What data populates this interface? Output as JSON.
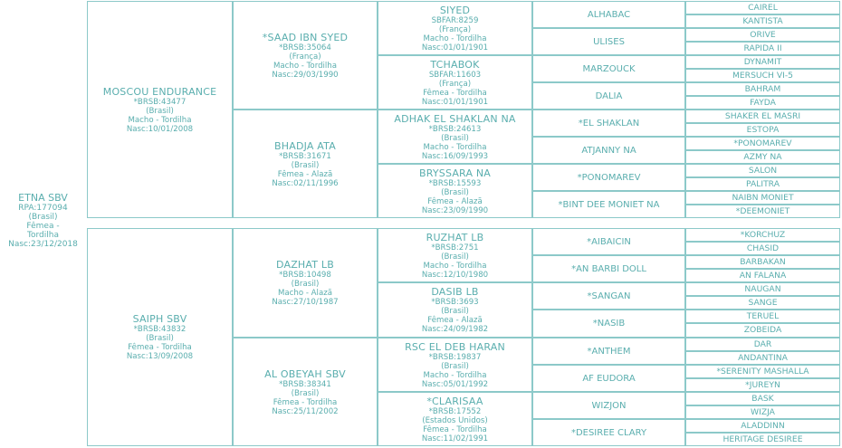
{
  "root": {
    "name": "ETNA SBV",
    "reg": "RPA:177094",
    "country": "(Brasil)",
    "sex": "Fêmea  -",
    "color": "Tordilha",
    "birth": "Nasc:23/12/2018"
  },
  "gen1": [
    {
      "name": "MOSCOU ENDURANCE",
      "reg": "*BRSB:43477",
      "country": "(Brasil)",
      "line": "Macho  - Tordilha",
      "birth": "Nasc:10/01/2008"
    },
    {
      "name": "SAIPH SBV",
      "reg": "*BRSB:43832",
      "country": "(Brasil)",
      "line": "Fêmea  - Tordilha",
      "birth": "Nasc:13/09/2008"
    }
  ],
  "gen2": [
    {
      "name": "*SAAD IBN SYED",
      "reg": "*BRSB:35064",
      "country": "(França)",
      "line": "Macho  - Tordilha",
      "birth": "Nasc:29/03/1990"
    },
    {
      "name": "BHADJA ATA",
      "reg": "*BRSB:31671",
      "country": "(Brasil)",
      "line": "Fêmea  - Alazã",
      "birth": "Nasc:02/11/1996"
    },
    {
      "name": "DAZHAT LB",
      "reg": "*BRSB:10498",
      "country": "(Brasil)",
      "line": "Macho  - Alazã",
      "birth": "Nasc:27/10/1987"
    },
    {
      "name": "AL OBEYAH SBV",
      "reg": "*BRSB:38341",
      "country": "(Brasil)",
      "line": "Fêmea  - Tordilha",
      "birth": "Nasc:25/11/2002"
    }
  ],
  "gen3": [
    {
      "name": "SIYED",
      "reg": "SBFAR:8259",
      "country": "(França)",
      "line": "Macho  - Tordilha",
      "birth": "Nasc:01/01/1901"
    },
    {
      "name": "TCHABOK",
      "reg": "SBFAR:11603",
      "country": "(França)",
      "line": "Fêmea  - Tordilha",
      "birth": "Nasc:01/01/1901"
    },
    {
      "name": "ADHAK EL SHAKLAN NA",
      "reg": "*BRSB:24613",
      "country": "(Brasil)",
      "line": "Macho  - Tordilha",
      "birth": "Nasc:16/09/1993"
    },
    {
      "name": "BRYSSARA NA",
      "reg": "*BRSB:15593",
      "country": "(Brasil)",
      "line": "Fêmea  - Alazã",
      "birth": "Nasc:23/09/1990"
    },
    {
      "name": "RUZHAT LB",
      "reg": "*BRSB:2751",
      "country": "(Brasil)",
      "line": "Macho  - Tordilha",
      "birth": "Nasc:12/10/1980"
    },
    {
      "name": "DASIB LB",
      "reg": "*BRSB:3693",
      "country": "(Brasil)",
      "line": "Fêmea  - Alazã",
      "birth": "Nasc:24/09/1982"
    },
    {
      "name": "RSC EL DEB HARAN",
      "reg": "*BRSB:19837",
      "country": "(Brasil)",
      "line": "Macho  - Tordilha",
      "birth": "Nasc:05/01/1992"
    },
    {
      "name": "*CLARISAA",
      "reg": "*BRSB:17552",
      "country": "(Estados Unidos)",
      "line": "Fêmea  - Tordilha",
      "birth": "Nasc:11/02/1991"
    }
  ],
  "gen4": [
    "ALHABAC",
    "ULISES",
    "MARZOUCK",
    "DALIA",
    "*EL SHAKLAN",
    "ATJANNY NA",
    "*PONOMAREV",
    "*BINT DEE MONIET NA",
    "*AIBAICIN",
    "*AN BARBI DOLL",
    "*SANGAN",
    "*NASIB",
    "*ANTHEM",
    "AF EUDORA",
    "WIZJON",
    "*DESIREE CLARY"
  ],
  "gen5": [
    "CAIREL",
    "KANTISTA",
    "ORIVE",
    "RAPIDA II",
    "DYNAMIT",
    "MERSUCH VI-5",
    "BAHRAM",
    "FAYDA",
    "SHAKER EL MASRI",
    "ESTOPA",
    "*PONOMAREV",
    "AZMY NA",
    "SALON",
    "PALITRA",
    "NAIBN MONIET",
    "*DEEMONIET",
    "*KORCHUZ",
    "CHASID",
    "BARBAKAN",
    "AN FALANA",
    "NAUGAN",
    "SANGE",
    "TERUEL",
    "ZOBEIDA",
    "DAR",
    "ANDANTINA",
    "*SERENITY MASHALLA",
    "*JUREYN",
    "BASK",
    "WIZJA",
    "ALADDINN",
    "HERITAGE DESIREE"
  ]
}
